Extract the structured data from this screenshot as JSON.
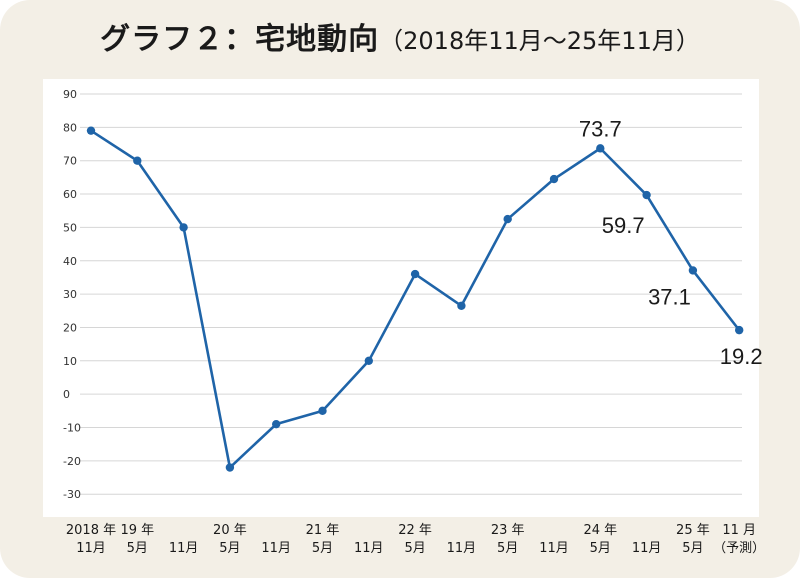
{
  "title": {
    "main": "グラフ２：宅地動向",
    "sub": "（2018年11月～25年11月）"
  },
  "chart_data": {
    "type": "line",
    "title": "グラフ２：宅地動向",
    "subtitle": "（2018年11月～25年11月）",
    "xlabel": "",
    "ylabel": "",
    "ylim": [
      -30,
      90
    ],
    "yticks": [
      90,
      80,
      70,
      60,
      50,
      40,
      30,
      20,
      10,
      0,
      -10,
      -20,
      -30
    ],
    "grid": true,
    "x": [
      [
        "2018 年",
        "11月"
      ],
      [
        "19 年",
        "5月"
      ],
      [
        "",
        "11月"
      ],
      [
        "20 年",
        "5月"
      ],
      [
        "",
        "11月"
      ],
      [
        "21 年",
        "5月"
      ],
      [
        "",
        "11月"
      ],
      [
        "22 年",
        "5月"
      ],
      [
        "",
        "11月"
      ],
      [
        "23 年",
        "5月"
      ],
      [
        "",
        "11月"
      ],
      [
        "24 年",
        "5月"
      ],
      [
        "",
        "11月"
      ],
      [
        "25 年",
        "5月"
      ],
      [
        "11 月",
        "（予測）"
      ]
    ],
    "series": [
      {
        "values": [
          79,
          70,
          50,
          -22,
          -9,
          -5,
          10,
          36,
          26.5,
          52.5,
          64.5,
          73.7,
          59.7,
          37.1,
          19.2
        ],
        "color": "#1f64a8"
      }
    ],
    "data_labels": [
      {
        "index": 11,
        "text": "73.7"
      },
      {
        "index": 12,
        "text": "59.7"
      },
      {
        "index": 13,
        "text": "37.1"
      },
      {
        "index": 14,
        "text": "19.2"
      }
    ]
  }
}
